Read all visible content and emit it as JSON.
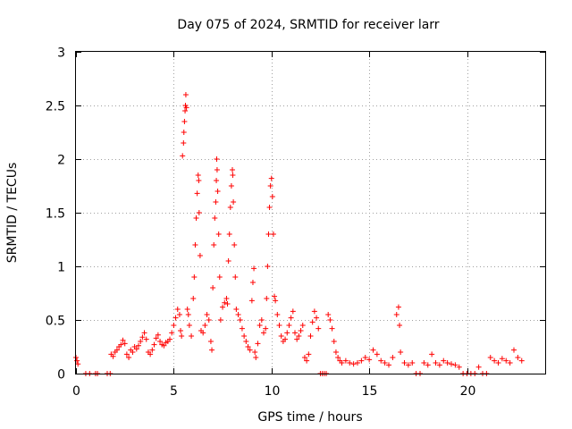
{
  "chart_data": {
    "type": "scatter",
    "title": "Day 075 of 2024, SRMTID for receiver larr",
    "xlabel": "GPS time / hours",
    "ylabel": "SRMTID / TECUs",
    "xlim": [
      0,
      24
    ],
    "ylim": [
      0,
      3
    ],
    "xticks": [
      0,
      5,
      10,
      15,
      20
    ],
    "yticks": [
      0,
      0.5,
      1,
      1.5,
      2,
      2.5,
      3
    ],
    "xtick_labels": [
      "0",
      "5",
      "10",
      "15",
      "20"
    ],
    "ytick_labels": [
      "0",
      "0.5",
      "1",
      "1.5",
      "2",
      "2.5",
      "3"
    ],
    "grid": true,
    "marker": "+",
    "color": "#ff0000",
    "series": [
      {
        "name": "SRMTID",
        "points": [
          [
            0.0,
            0.15
          ],
          [
            0.05,
            0.12
          ],
          [
            0.1,
            0.09
          ],
          [
            0.5,
            0.0
          ],
          [
            0.7,
            0.0
          ],
          [
            1.0,
            0.0
          ],
          [
            1.1,
            0.0
          ],
          [
            1.6,
            0.0
          ],
          [
            1.75,
            0.0
          ],
          [
            1.8,
            0.18
          ],
          [
            1.9,
            0.16
          ],
          [
            2.0,
            0.2
          ],
          [
            2.1,
            0.22
          ],
          [
            2.2,
            0.25
          ],
          [
            2.3,
            0.27
          ],
          [
            2.4,
            0.31
          ],
          [
            2.5,
            0.28
          ],
          [
            2.6,
            0.18
          ],
          [
            2.7,
            0.15
          ],
          [
            2.8,
            0.22
          ],
          [
            2.9,
            0.2
          ],
          [
            3.0,
            0.25
          ],
          [
            3.1,
            0.23
          ],
          [
            3.2,
            0.26
          ],
          [
            3.3,
            0.3
          ],
          [
            3.4,
            0.34
          ],
          [
            3.5,
            0.38
          ],
          [
            3.6,
            0.32
          ],
          [
            3.7,
            0.2
          ],
          [
            3.8,
            0.18
          ],
          [
            3.9,
            0.22
          ],
          [
            4.0,
            0.27
          ],
          [
            4.1,
            0.33
          ],
          [
            4.2,
            0.36
          ],
          [
            4.3,
            0.3
          ],
          [
            4.4,
            0.27
          ],
          [
            4.5,
            0.26
          ],
          [
            4.6,
            0.29
          ],
          [
            4.7,
            0.3
          ],
          [
            4.8,
            0.32
          ],
          [
            4.9,
            0.38
          ],
          [
            5.0,
            0.45
          ],
          [
            5.1,
            0.52
          ],
          [
            5.2,
            0.6
          ],
          [
            5.3,
            0.55
          ],
          [
            5.35,
            0.4
          ],
          [
            5.4,
            0.35
          ],
          [
            5.45,
            2.03
          ],
          [
            5.5,
            2.15
          ],
          [
            5.52,
            2.25
          ],
          [
            5.55,
            2.35
          ],
          [
            5.58,
            2.45
          ],
          [
            5.6,
            2.5
          ],
          [
            5.62,
            2.6
          ],
          [
            5.65,
            2.48
          ],
          [
            5.7,
            0.6
          ],
          [
            5.75,
            0.55
          ],
          [
            5.8,
            0.45
          ],
          [
            5.9,
            0.35
          ],
          [
            6.0,
            0.7
          ],
          [
            6.05,
            0.9
          ],
          [
            6.1,
            1.2
          ],
          [
            6.15,
            1.45
          ],
          [
            6.2,
            1.68
          ],
          [
            6.25,
            1.85
          ],
          [
            6.28,
            1.8
          ],
          [
            6.3,
            1.5
          ],
          [
            6.35,
            1.1
          ],
          [
            6.4,
            0.4
          ],
          [
            6.5,
            0.38
          ],
          [
            6.6,
            0.45
          ],
          [
            6.7,
            0.55
          ],
          [
            6.8,
            0.5
          ],
          [
            6.9,
            0.3
          ],
          [
            6.95,
            0.22
          ],
          [
            7.0,
            0.8
          ],
          [
            7.05,
            1.2
          ],
          [
            7.1,
            1.45
          ],
          [
            7.15,
            1.6
          ],
          [
            7.18,
            1.8
          ],
          [
            7.2,
            2.0
          ],
          [
            7.22,
            1.9
          ],
          [
            7.25,
            1.7
          ],
          [
            7.3,
            1.3
          ],
          [
            7.35,
            0.9
          ],
          [
            7.4,
            0.5
          ],
          [
            7.5,
            0.62
          ],
          [
            7.6,
            0.66
          ],
          [
            7.7,
            0.7
          ],
          [
            7.75,
            0.65
          ],
          [
            7.8,
            1.05
          ],
          [
            7.85,
            1.3
          ],
          [
            7.9,
            1.55
          ],
          [
            7.95,
            1.75
          ],
          [
            8.0,
            1.9
          ],
          [
            8.02,
            1.85
          ],
          [
            8.05,
            1.6
          ],
          [
            8.1,
            1.2
          ],
          [
            8.15,
            0.9
          ],
          [
            8.2,
            0.6
          ],
          [
            8.3,
            0.55
          ],
          [
            8.4,
            0.5
          ],
          [
            8.5,
            0.42
          ],
          [
            8.6,
            0.35
          ],
          [
            8.7,
            0.3
          ],
          [
            8.8,
            0.25
          ],
          [
            8.9,
            0.22
          ],
          [
            9.0,
            0.68
          ],
          [
            9.05,
            0.85
          ],
          [
            9.1,
            0.98
          ],
          [
            9.15,
            0.2
          ],
          [
            9.2,
            0.15
          ],
          [
            9.3,
            0.28
          ],
          [
            9.4,
            0.45
          ],
          [
            9.5,
            0.5
          ],
          [
            9.6,
            0.38
          ],
          [
            9.7,
            0.42
          ],
          [
            9.75,
            0.7
          ],
          [
            9.8,
            1.0
          ],
          [
            9.85,
            1.3
          ],
          [
            9.9,
            1.55
          ],
          [
            9.95,
            1.75
          ],
          [
            10.0,
            1.82
          ],
          [
            10.05,
            1.65
          ],
          [
            10.1,
            1.3
          ],
          [
            10.15,
            0.72
          ],
          [
            10.2,
            0.68
          ],
          [
            10.3,
            0.55
          ],
          [
            10.4,
            0.45
          ],
          [
            10.5,
            0.35
          ],
          [
            10.6,
            0.3
          ],
          [
            10.7,
            0.32
          ],
          [
            10.8,
            0.38
          ],
          [
            10.9,
            0.45
          ],
          [
            11.0,
            0.52
          ],
          [
            11.1,
            0.58
          ],
          [
            11.2,
            0.38
          ],
          [
            11.3,
            0.32
          ],
          [
            11.4,
            0.35
          ],
          [
            11.5,
            0.4
          ],
          [
            11.6,
            0.45
          ],
          [
            11.7,
            0.15
          ],
          [
            11.8,
            0.12
          ],
          [
            11.9,
            0.18
          ],
          [
            12.0,
            0.35
          ],
          [
            12.1,
            0.48
          ],
          [
            12.2,
            0.58
          ],
          [
            12.3,
            0.52
          ],
          [
            12.4,
            0.42
          ],
          [
            12.5,
            0.0
          ],
          [
            12.6,
            0.0
          ],
          [
            12.7,
            0.0
          ],
          [
            12.8,
            0.0
          ],
          [
            12.9,
            0.55
          ],
          [
            13.0,
            0.5
          ],
          [
            13.1,
            0.42
          ],
          [
            13.2,
            0.3
          ],
          [
            13.3,
            0.2
          ],
          [
            13.4,
            0.15
          ],
          [
            13.5,
            0.12
          ],
          [
            13.6,
            0.1
          ],
          [
            13.8,
            0.12
          ],
          [
            14.0,
            0.1
          ],
          [
            14.2,
            0.09
          ],
          [
            14.4,
            0.1
          ],
          [
            14.6,
            0.12
          ],
          [
            14.8,
            0.15
          ],
          [
            15.0,
            0.13
          ],
          [
            15.2,
            0.22
          ],
          [
            15.4,
            0.18
          ],
          [
            15.6,
            0.12
          ],
          [
            15.8,
            0.1
          ],
          [
            16.0,
            0.08
          ],
          [
            16.2,
            0.15
          ],
          [
            16.4,
            0.55
          ],
          [
            16.5,
            0.62
          ],
          [
            16.55,
            0.45
          ],
          [
            16.6,
            0.2
          ],
          [
            16.8,
            0.1
          ],
          [
            17.0,
            0.08
          ],
          [
            17.2,
            0.1
          ],
          [
            17.4,
            0.0
          ],
          [
            17.6,
            0.0
          ],
          [
            17.8,
            0.1
          ],
          [
            18.0,
            0.08
          ],
          [
            18.2,
            0.18
          ],
          [
            18.4,
            0.1
          ],
          [
            18.6,
            0.08
          ],
          [
            18.8,
            0.12
          ],
          [
            19.0,
            0.1
          ],
          [
            19.2,
            0.09
          ],
          [
            19.4,
            0.08
          ],
          [
            19.6,
            0.06
          ],
          [
            19.8,
            0.0
          ],
          [
            20.0,
            0.0
          ],
          [
            20.2,
            0.0
          ],
          [
            20.4,
            0.0
          ],
          [
            20.6,
            0.06
          ],
          [
            20.8,
            0.0
          ],
          [
            21.0,
            0.0
          ],
          [
            21.2,
            0.15
          ],
          [
            21.4,
            0.12
          ],
          [
            21.6,
            0.1
          ],
          [
            21.8,
            0.14
          ],
          [
            22.0,
            0.12
          ],
          [
            22.2,
            0.1
          ],
          [
            22.4,
            0.22
          ],
          [
            22.6,
            0.15
          ],
          [
            22.8,
            0.12
          ]
        ]
      }
    ]
  }
}
